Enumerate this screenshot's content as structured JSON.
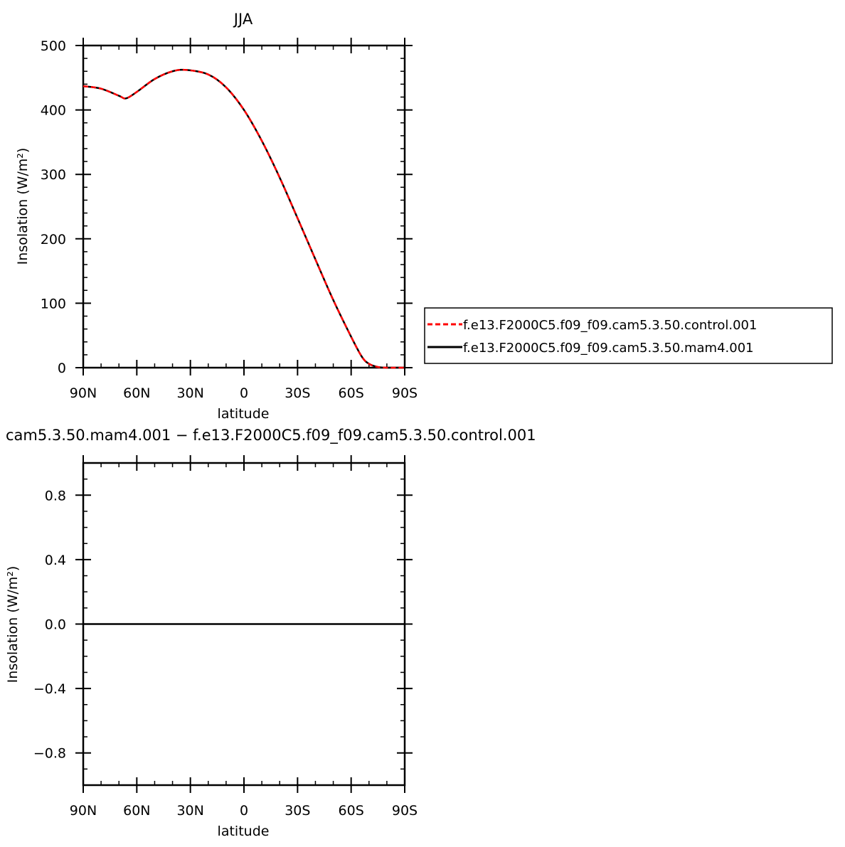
{
  "chart_data": [
    {
      "type": "line",
      "title": "JJA",
      "xlabel": "latitude",
      "ylabel": "Insolation  (W/m²)",
      "xlim": [
        90,
        -90
      ],
      "ylim": [
        0,
        500
      ],
      "x_ticks": [
        90,
        60,
        30,
        0,
        -30,
        -60,
        -90
      ],
      "x_tick_labels": [
        "90N",
        "60N",
        "30N",
        "0",
        "30S",
        "60S",
        "90S"
      ],
      "y_ticks": [
        0,
        100,
        200,
        300,
        400,
        500
      ],
      "y_tick_labels": [
        "0",
        "100",
        "200",
        "300",
        "400",
        "500"
      ],
      "grid": false,
      "legend_position": "right",
      "x": [
        90,
        80,
        70,
        66,
        60,
        50,
        40,
        32,
        20,
        10,
        0,
        -10,
        -20,
        -30,
        -40,
        -50,
        -60,
        -66,
        -70,
        -75,
        -80,
        -85,
        -90
      ],
      "series": [
        {
          "name": "f.e13.F2000C5.f09_f09.cam5.3.50.control.001",
          "color": "#ff0000",
          "dash": "dashed",
          "values": [
            437,
            433,
            422,
            418,
            428,
            448,
            460,
            462,
            455,
            435,
            400,
            352,
            295,
            232,
            168,
            105,
            48,
            17,
            6,
            1,
            0,
            0,
            0
          ]
        },
        {
          "name": "f.e13.F2000C5.f09_f09.cam5.3.50.mam4.001",
          "color": "#000000",
          "dash": "solid",
          "values": [
            437,
            433,
            422,
            418,
            428,
            448,
            460,
            462,
            455,
            435,
            400,
            352,
            295,
            232,
            168,
            105,
            48,
            17,
            6,
            1,
            0,
            0,
            0
          ]
        }
      ]
    },
    {
      "type": "line",
      "title": "cam5.3.50.mam4.001 − f.e13.F2000C5.f09_f09.cam5.3.50.control.001",
      "xlabel": "latitude",
      "ylabel": "Insolation  (W/m²)",
      "xlim": [
        90,
        -90
      ],
      "ylim": [
        -1,
        1
      ],
      "x_ticks": [
        90,
        60,
        30,
        0,
        -30,
        -60,
        -90
      ],
      "x_tick_labels": [
        "90N",
        "60N",
        "30N",
        "0",
        "30S",
        "60S",
        "90S"
      ],
      "y_ticks": [
        -0.8,
        -0.4,
        0.0,
        0.4,
        0.8
      ],
      "y_tick_labels": [
        "−0.8",
        "−0.4",
        "0.0",
        "0.4",
        "0.8"
      ],
      "grid": false,
      "x": [
        90,
        -90
      ],
      "series": [
        {
          "color": "#000000",
          "dash": "solid",
          "values": [
            0,
            0
          ]
        }
      ]
    }
  ]
}
